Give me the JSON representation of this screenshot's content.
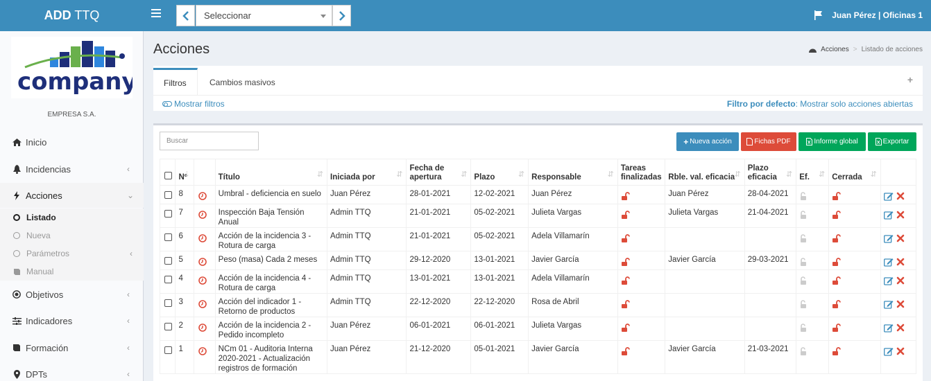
{
  "app": {
    "brand_bold": "ADD",
    "brand_rest": " TTQ"
  },
  "header": {
    "select_value": "Seleccionar",
    "user": "Juan Pérez | Oficinas 1"
  },
  "sidebar": {
    "logo_text": "company",
    "company": "EMPRESA S.A.",
    "items": [
      {
        "label": "Inicio",
        "icon": "home-icon"
      },
      {
        "label": "Incidencias",
        "icon": "bell-icon"
      },
      {
        "label": "Acciones",
        "icon": "bolt-icon"
      },
      {
        "label": "Objetivos",
        "icon": "target-icon"
      },
      {
        "label": "Indicadores",
        "icon": "sliders-icon"
      },
      {
        "label": "Formación",
        "icon": "book-icon"
      },
      {
        "label": "DPTs",
        "icon": "map-marker-icon"
      }
    ],
    "subitems": [
      {
        "label": "Listado"
      },
      {
        "label": "Nueva"
      },
      {
        "label": "Parámetros"
      },
      {
        "label": "Manual"
      }
    ]
  },
  "page": {
    "title": "Acciones"
  },
  "breadcrumb": {
    "first": "Acciones",
    "sep": ">",
    "last": "Listado de acciones"
  },
  "tabs": {
    "filtros": "Filtros",
    "cambios": "Cambios masivos",
    "plus": "+"
  },
  "filters": {
    "mostrar": "Mostrar filtros",
    "default_label": "Filtro por defecto",
    "default_value": ": Mostrar solo acciones abiertas"
  },
  "toolbar": {
    "search_placeholder": "Buscar",
    "nueva": "Nueva acción",
    "pdf": "Fichas PDF",
    "informe": "Informe global",
    "exportar": "Exportar",
    "colors": {
      "nueva": "#3c8dbc",
      "pdf": "#dd4b39",
      "informe": "#00a65a",
      "exportar": "#00a65a"
    }
  },
  "table": {
    "headers": [
      "Nº",
      "Título",
      "Iniciada por",
      "Fecha de apertura",
      "Plazo",
      "Responsable",
      "Tareas finalizadas",
      "Rble. val. eficacia",
      "Plazo eficacia",
      "Ef.",
      "Cerrada"
    ],
    "rows": [
      {
        "n": "8",
        "titulo": "Umbral - deficiencia en suelo",
        "iniciada": "Juan Pérez",
        "fecha": "28-01-2021",
        "plazo": "12-02-2021",
        "plazo_status": "green",
        "responsable": "Juan Pérez",
        "rble": "Juan Pérez",
        "plazo_ef": "28-04-2021"
      },
      {
        "n": "7",
        "titulo": "Inspección Baja Tensión Anual",
        "iniciada": "Admin TTQ",
        "fecha": "21-01-2021",
        "plazo": "05-02-2021",
        "plazo_status": "red",
        "responsable": "Julieta Vargas",
        "rble": "Julieta Vargas",
        "plazo_ef": "21-04-2021"
      },
      {
        "n": "6",
        "titulo": "Acción de la incidencia 3 - Rotura de carga",
        "iniciada": "Admin TTQ",
        "fecha": "21-01-2021",
        "plazo": "05-02-2021",
        "plazo_status": "red",
        "responsable": "Adela Villamarín",
        "rble": "",
        "plazo_ef": ""
      },
      {
        "n": "5",
        "titulo": "Peso (masa) Cada 2 meses",
        "iniciada": "Admin TTQ",
        "fecha": "29-12-2020",
        "plazo": "13-01-2021",
        "plazo_status": "red",
        "responsable": "Javier García",
        "rble": "Javier García",
        "plazo_ef": "29-03-2021"
      },
      {
        "n": "4",
        "titulo": "Acción de la incidencia 4 - Rotura de carga",
        "iniciada": "Admin TTQ",
        "fecha": "13-01-2021",
        "plazo": "13-01-2021",
        "plazo_status": "red",
        "responsable": "Adela Villamarín",
        "rble": "",
        "plazo_ef": ""
      },
      {
        "n": "3",
        "titulo": "Acción del indicador 1 - Retorno de productos",
        "iniciada": "Admin TTQ",
        "fecha": "22-12-2020",
        "plazo": "22-12-2020",
        "plazo_status": "red",
        "responsable": "Rosa de Abril",
        "rble": "",
        "plazo_ef": ""
      },
      {
        "n": "2",
        "titulo": "Acción de la incidencia 2 - Pedido incompleto",
        "iniciada": "Juan Pérez",
        "fecha": "06-01-2021",
        "plazo": "06-01-2021",
        "plazo_status": "red",
        "responsable": "Julieta Vargas",
        "rble": "",
        "plazo_ef": ""
      },
      {
        "n": "1",
        "titulo": "NCm 01 - Auditoria Interna 2020-2021 - Actualización registros de formación",
        "iniciada": "Juan Pérez",
        "fecha": "21-12-2020",
        "plazo": "05-01-2021",
        "plazo_status": "red",
        "responsable": "Javier García",
        "rble": "Javier García",
        "plazo_ef": "21-03-2021"
      }
    ]
  }
}
